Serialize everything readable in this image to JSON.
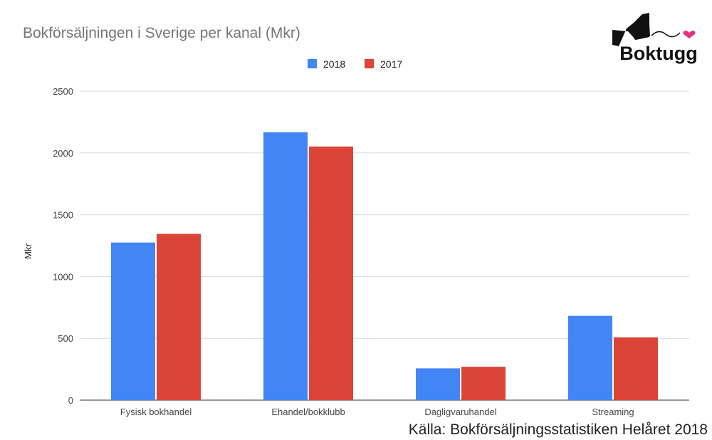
{
  "chart_data": {
    "type": "bar",
    "title": "Bokförsäljningen i Sverige per kanal (Mkr)",
    "ylabel": "Mkr",
    "xlabel": "",
    "categories": [
      "Fysisk bokhandel",
      "Ehandel/bokklubb",
      "Dagligvaruhandel",
      "Streaming"
    ],
    "series": [
      {
        "name": "2018",
        "color": "#4285f4",
        "values": [
          1275,
          2168,
          257,
          682
        ]
      },
      {
        "name": "2017",
        "color": "#db4437",
        "values": [
          1345,
          2052,
          270,
          508
        ]
      }
    ],
    "ylim": [
      0,
      2500
    ],
    "yticks": [
      0,
      500,
      1000,
      1500,
      2000,
      2500
    ],
    "grid": true,
    "legend_position": "top"
  },
  "source_text": "Källa: Bokförsäljningsstatistiken Helåret 2018",
  "logo": {
    "text": "Boktugg",
    "accent_color": "#e8317a"
  }
}
